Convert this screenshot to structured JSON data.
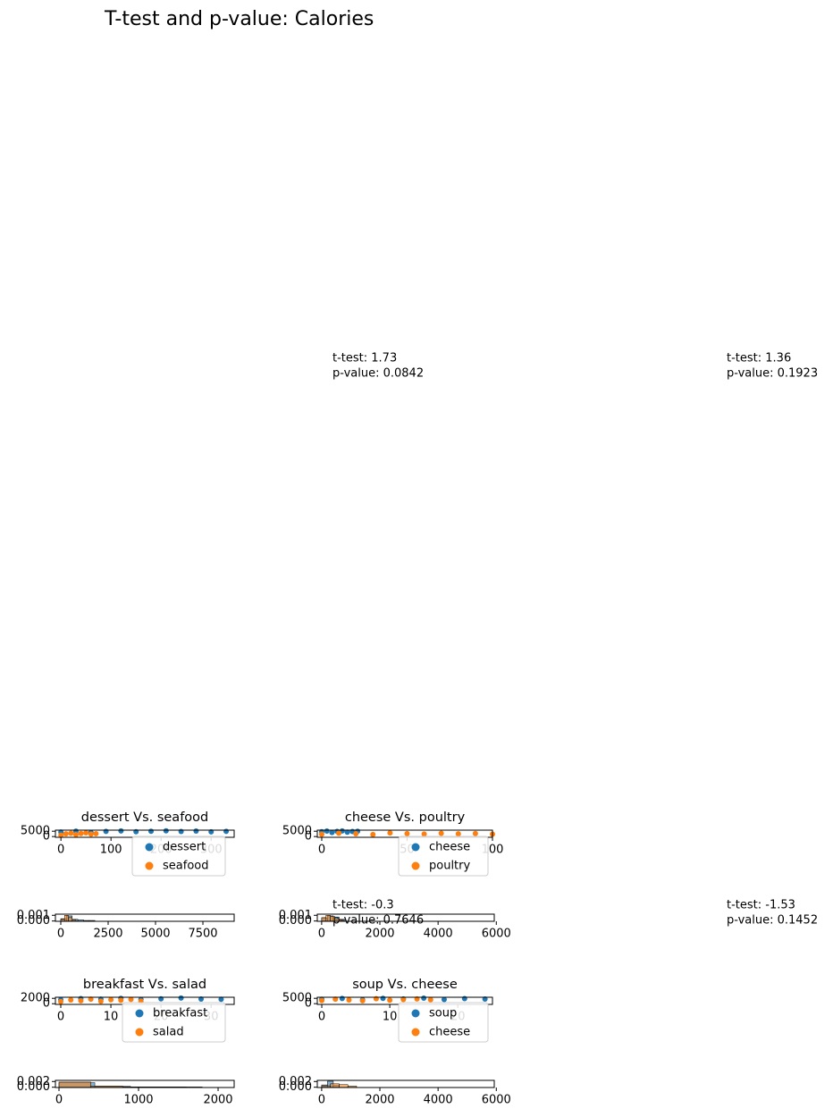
{
  "figure": {
    "title": "T-test and p-value: Calories",
    "annotations": [
      {
        "lines": [
          "t-test: 1.73",
          "p-value: 0.0842"
        ]
      },
      {
        "lines": [
          "t-test: 1.36",
          "p-value: 0.1923"
        ]
      },
      {
        "lines": [
          "t-test: -0.3",
          "p-value: 0.7646"
        ]
      },
      {
        "lines": [
          "t-test: -1.53",
          "p-value: 0.1452"
        ]
      }
    ]
  },
  "chart_data": [
    {
      "type": "scatter",
      "title": "dessert Vs. seafood",
      "xlim": [
        -11,
        346
      ],
      "ylim": [
        -700,
        6000
      ],
      "xticks": [
        0,
        100,
        200,
        300
      ],
      "yticks": [
        0,
        5000
      ],
      "series": [
        {
          "name": "dessert",
          "color": "#1f77b4",
          "x": [
            0,
            30,
            60,
            90,
            120,
            150,
            180,
            210,
            240,
            270,
            300,
            330
          ],
          "values": [
            4200,
            5100,
            3900,
            4800,
            5300,
            4500,
            5000,
            5400,
            4700,
            5200,
            4400,
            4900
          ]
        },
        {
          "name": "seafood",
          "color": "#ff7f0e",
          "x": [
            0,
            10,
            20,
            30,
            40,
            50,
            60,
            70
          ],
          "values": [
            1200,
            2500,
            3100,
            1800,
            2900,
            3500,
            2200,
            2700
          ]
        }
      ]
    },
    {
      "type": "histogram",
      "xlim": [
        -283,
        9150
      ],
      "ylim": [
        -5e-05,
        0.0012
      ],
      "xticks": [
        0,
        2500,
        5000,
        7500
      ],
      "yticks": [
        {
          "value": 0,
          "label": "0.000"
        },
        {
          "value": 0.001,
          "label": "0.001"
        }
      ],
      "series": [
        {
          "name": "dessert",
          "color": "#1f77b4",
          "bins": [
            0,
            300,
            600,
            900,
            1200,
            1500,
            1800
          ],
          "values": [
            0.0004,
            0.0009,
            0.0003,
            0.0002,
            0.0001,
            0.0001
          ]
        },
        {
          "name": "seafood",
          "color": "#ff7f0e",
          "bins": [
            0,
            200,
            400,
            600,
            800
          ],
          "values": [
            0.0003,
            0.001,
            0.0006,
            0.0002
          ]
        }
      ]
    },
    {
      "type": "scatter",
      "title": "cheese Vs. poultry",
      "xlim": [
        -2.6,
        100
      ],
      "ylim": [
        -700,
        6000
      ],
      "xticks": [
        0,
        50,
        100
      ],
      "yticks": [
        0,
        5000
      ],
      "series": [
        {
          "name": "cheese",
          "color": "#1f77b4",
          "x": [
            0,
            3,
            6,
            9,
            12,
            15,
            18,
            21
          ],
          "values": [
            4500,
            5200,
            3800,
            4900,
            5300,
            4100,
            4700,
            5000
          ]
        },
        {
          "name": "poultry",
          "color": "#ff7f0e",
          "x": [
            0,
            10,
            20,
            30,
            40,
            50,
            60,
            70,
            80,
            90,
            100
          ],
          "values": [
            2100,
            3200,
            2600,
            1900,
            3400,
            2800,
            2300,
            3100,
            2500,
            2900,
            2200
          ]
        }
      ]
    },
    {
      "type": "histogram",
      "xlim": [
        -150,
        5930
      ],
      "ylim": [
        -5e-05,
        0.0012
      ],
      "xticks": [
        0,
        2000,
        4000,
        6000
      ],
      "yticks": [
        {
          "value": 0,
          "label": "0.000"
        },
        {
          "value": 0.001,
          "label": "0.001"
        }
      ],
      "series": [
        {
          "name": "cheese",
          "color": "#1f77b4",
          "bins": [
            0,
            200,
            400,
            600,
            800
          ],
          "values": [
            0.0005,
            0.0009,
            0.0007,
            0.0003
          ]
        },
        {
          "name": "poultry",
          "color": "#ff7f0e",
          "bins": [
            0,
            150,
            300,
            450,
            600,
            750
          ],
          "values": [
            0.0006,
            0.001,
            0.0008,
            0.0004,
            0.0002
          ]
        }
      ]
    },
    {
      "type": "scatter",
      "title": "breakfast Vs. salad",
      "xlim": [
        -1.07,
        34.6
      ],
      "ylim": [
        -250,
        2400
      ],
      "xticks": [
        0,
        10,
        20,
        30
      ],
      "yticks": [
        0,
        2000
      ],
      "series": [
        {
          "name": "breakfast",
          "color": "#1f77b4",
          "x": [
            0,
            4,
            8,
            12,
            16,
            20,
            24,
            28,
            32
          ],
          "values": [
            1500,
            1900,
            1700,
            2000,
            1600,
            1800,
            2100,
            1750,
            1650
          ]
        },
        {
          "name": "salad",
          "color": "#ff7f0e",
          "x": [
            0,
            2,
            4,
            6,
            8,
            10,
            12,
            14,
            16
          ],
          "values": [
            800,
            1400,
            1100,
            1700,
            900,
            1500,
            1300,
            1600,
            1000
          ]
        }
      ]
    },
    {
      "type": "histogram",
      "xlim": [
        -45,
        2202
      ],
      "ylim": [
        -0.0001,
        0.0024
      ],
      "xticks": [
        0,
        1000,
        2000
      ],
      "yticks": [
        {
          "value": 0,
          "label": "0.000"
        },
        {
          "value": 0.002,
          "label": "0.002"
        }
      ],
      "series": [
        {
          "name": "breakfast",
          "color": "#1f77b4",
          "bins": [
            0,
            450,
            900,
            1350,
            1800
          ],
          "values": [
            0.0016,
            0.0003,
            0.0001,
            0.0001
          ]
        },
        {
          "name": "salad",
          "color": "#ff7f0e",
          "bins": [
            0,
            400,
            800,
            1200,
            1600
          ],
          "values": [
            0.0018,
            0.0004,
            0.0001,
            0.0001
          ]
        }
      ]
    },
    {
      "type": "scatter",
      "title": "soup Vs. cheese",
      "xlim": [
        -0.66,
        25.1
      ],
      "ylim": [
        -700,
        6000
      ],
      "xticks": [
        0,
        10,
        20
      ],
      "yticks": [
        0,
        5000
      ],
      "series": [
        {
          "name": "soup",
          "color": "#1f77b4",
          "x": [
            0,
            3,
            6,
            9,
            12,
            15,
            18,
            21,
            24
          ],
          "values": [
            4100,
            4800,
            3600,
            5000,
            4400,
            5200,
            3900,
            4700,
            4300
          ]
        },
        {
          "name": "cheese",
          "color": "#ff7f0e",
          "x": [
            0,
            2,
            4,
            6,
            8,
            10,
            12,
            14,
            16
          ],
          "values": [
            3000,
            4200,
            3500,
            2800,
            4600,
            3300,
            3900,
            4400,
            3700
          ]
        }
      ]
    },
    {
      "type": "histogram",
      "xlim": [
        -150,
        5930
      ],
      "ylim": [
        -0.0001,
        0.0024
      ],
      "xticks": [
        0,
        2000,
        4000,
        6000
      ],
      "yticks": [
        {
          "value": 0,
          "label": "0.000"
        },
        {
          "value": 0.002,
          "label": "0.002"
        }
      ],
      "series": [
        {
          "name": "soup",
          "color": "#1f77b4",
          "bins": [
            0,
            200,
            400,
            600
          ],
          "values": [
            0.0008,
            0.0021,
            0.0006
          ]
        },
        {
          "name": "cheese",
          "color": "#ff7f0e",
          "bins": [
            0,
            300,
            600,
            900,
            1200
          ],
          "values": [
            0.0005,
            0.0012,
            0.0009,
            0.0004
          ]
        }
      ]
    }
  ]
}
